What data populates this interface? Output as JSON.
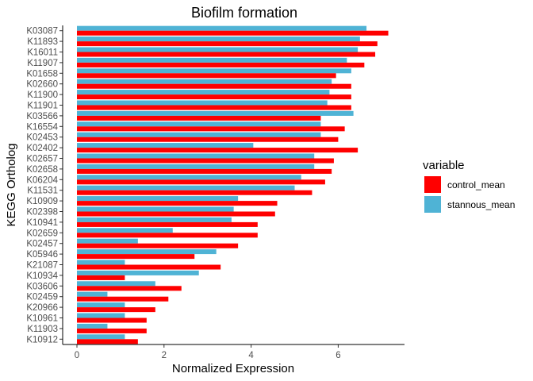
{
  "chart_data": {
    "type": "bar",
    "orientation": "horizontal",
    "title": "Biofilm formation",
    "xlabel": "Normalized Expression",
    "ylabel": "KEGG Ortholog",
    "xlim": [
      0,
      7.4
    ],
    "x_ticks": [
      0,
      2,
      4,
      6
    ],
    "grid": false,
    "legend_title": "variable",
    "legend_position": "right",
    "categories": [
      "K03087",
      "K11893",
      "K16011",
      "K11907",
      "K01658",
      "K02660",
      "K11900",
      "K11901",
      "K03566",
      "K16554",
      "K02453",
      "K02402",
      "K02657",
      "K02658",
      "K06204",
      "K11531",
      "K10909",
      "K02398",
      "K10941",
      "K02659",
      "K02457",
      "K05946",
      "K21087",
      "K10934",
      "K03606",
      "K02459",
      "K20966",
      "K10961",
      "K11903",
      "K10912"
    ],
    "series": [
      {
        "name": "control_mean",
        "color": "#ff0000",
        "values": [
          7.15,
          6.9,
          6.85,
          6.6,
          5.95,
          6.3,
          6.3,
          6.3,
          5.6,
          6.15,
          6.0,
          6.45,
          5.9,
          5.85,
          5.7,
          5.4,
          4.6,
          4.55,
          4.15,
          4.15,
          3.7,
          2.7,
          3.3,
          1.1,
          2.4,
          2.1,
          1.8,
          1.6,
          1.6,
          1.4
        ]
      },
      {
        "name": "stannous_mean",
        "color": "#4fb3d5",
        "values": [
          6.65,
          6.5,
          6.45,
          6.2,
          6.3,
          5.85,
          5.8,
          5.75,
          6.35,
          5.6,
          5.6,
          4.05,
          5.45,
          5.45,
          5.15,
          5.0,
          3.7,
          3.6,
          3.55,
          2.2,
          1.4,
          3.2,
          1.1,
          2.8,
          1.8,
          0.7,
          1.1,
          1.1,
          0.7,
          1.1
        ]
      }
    ]
  }
}
